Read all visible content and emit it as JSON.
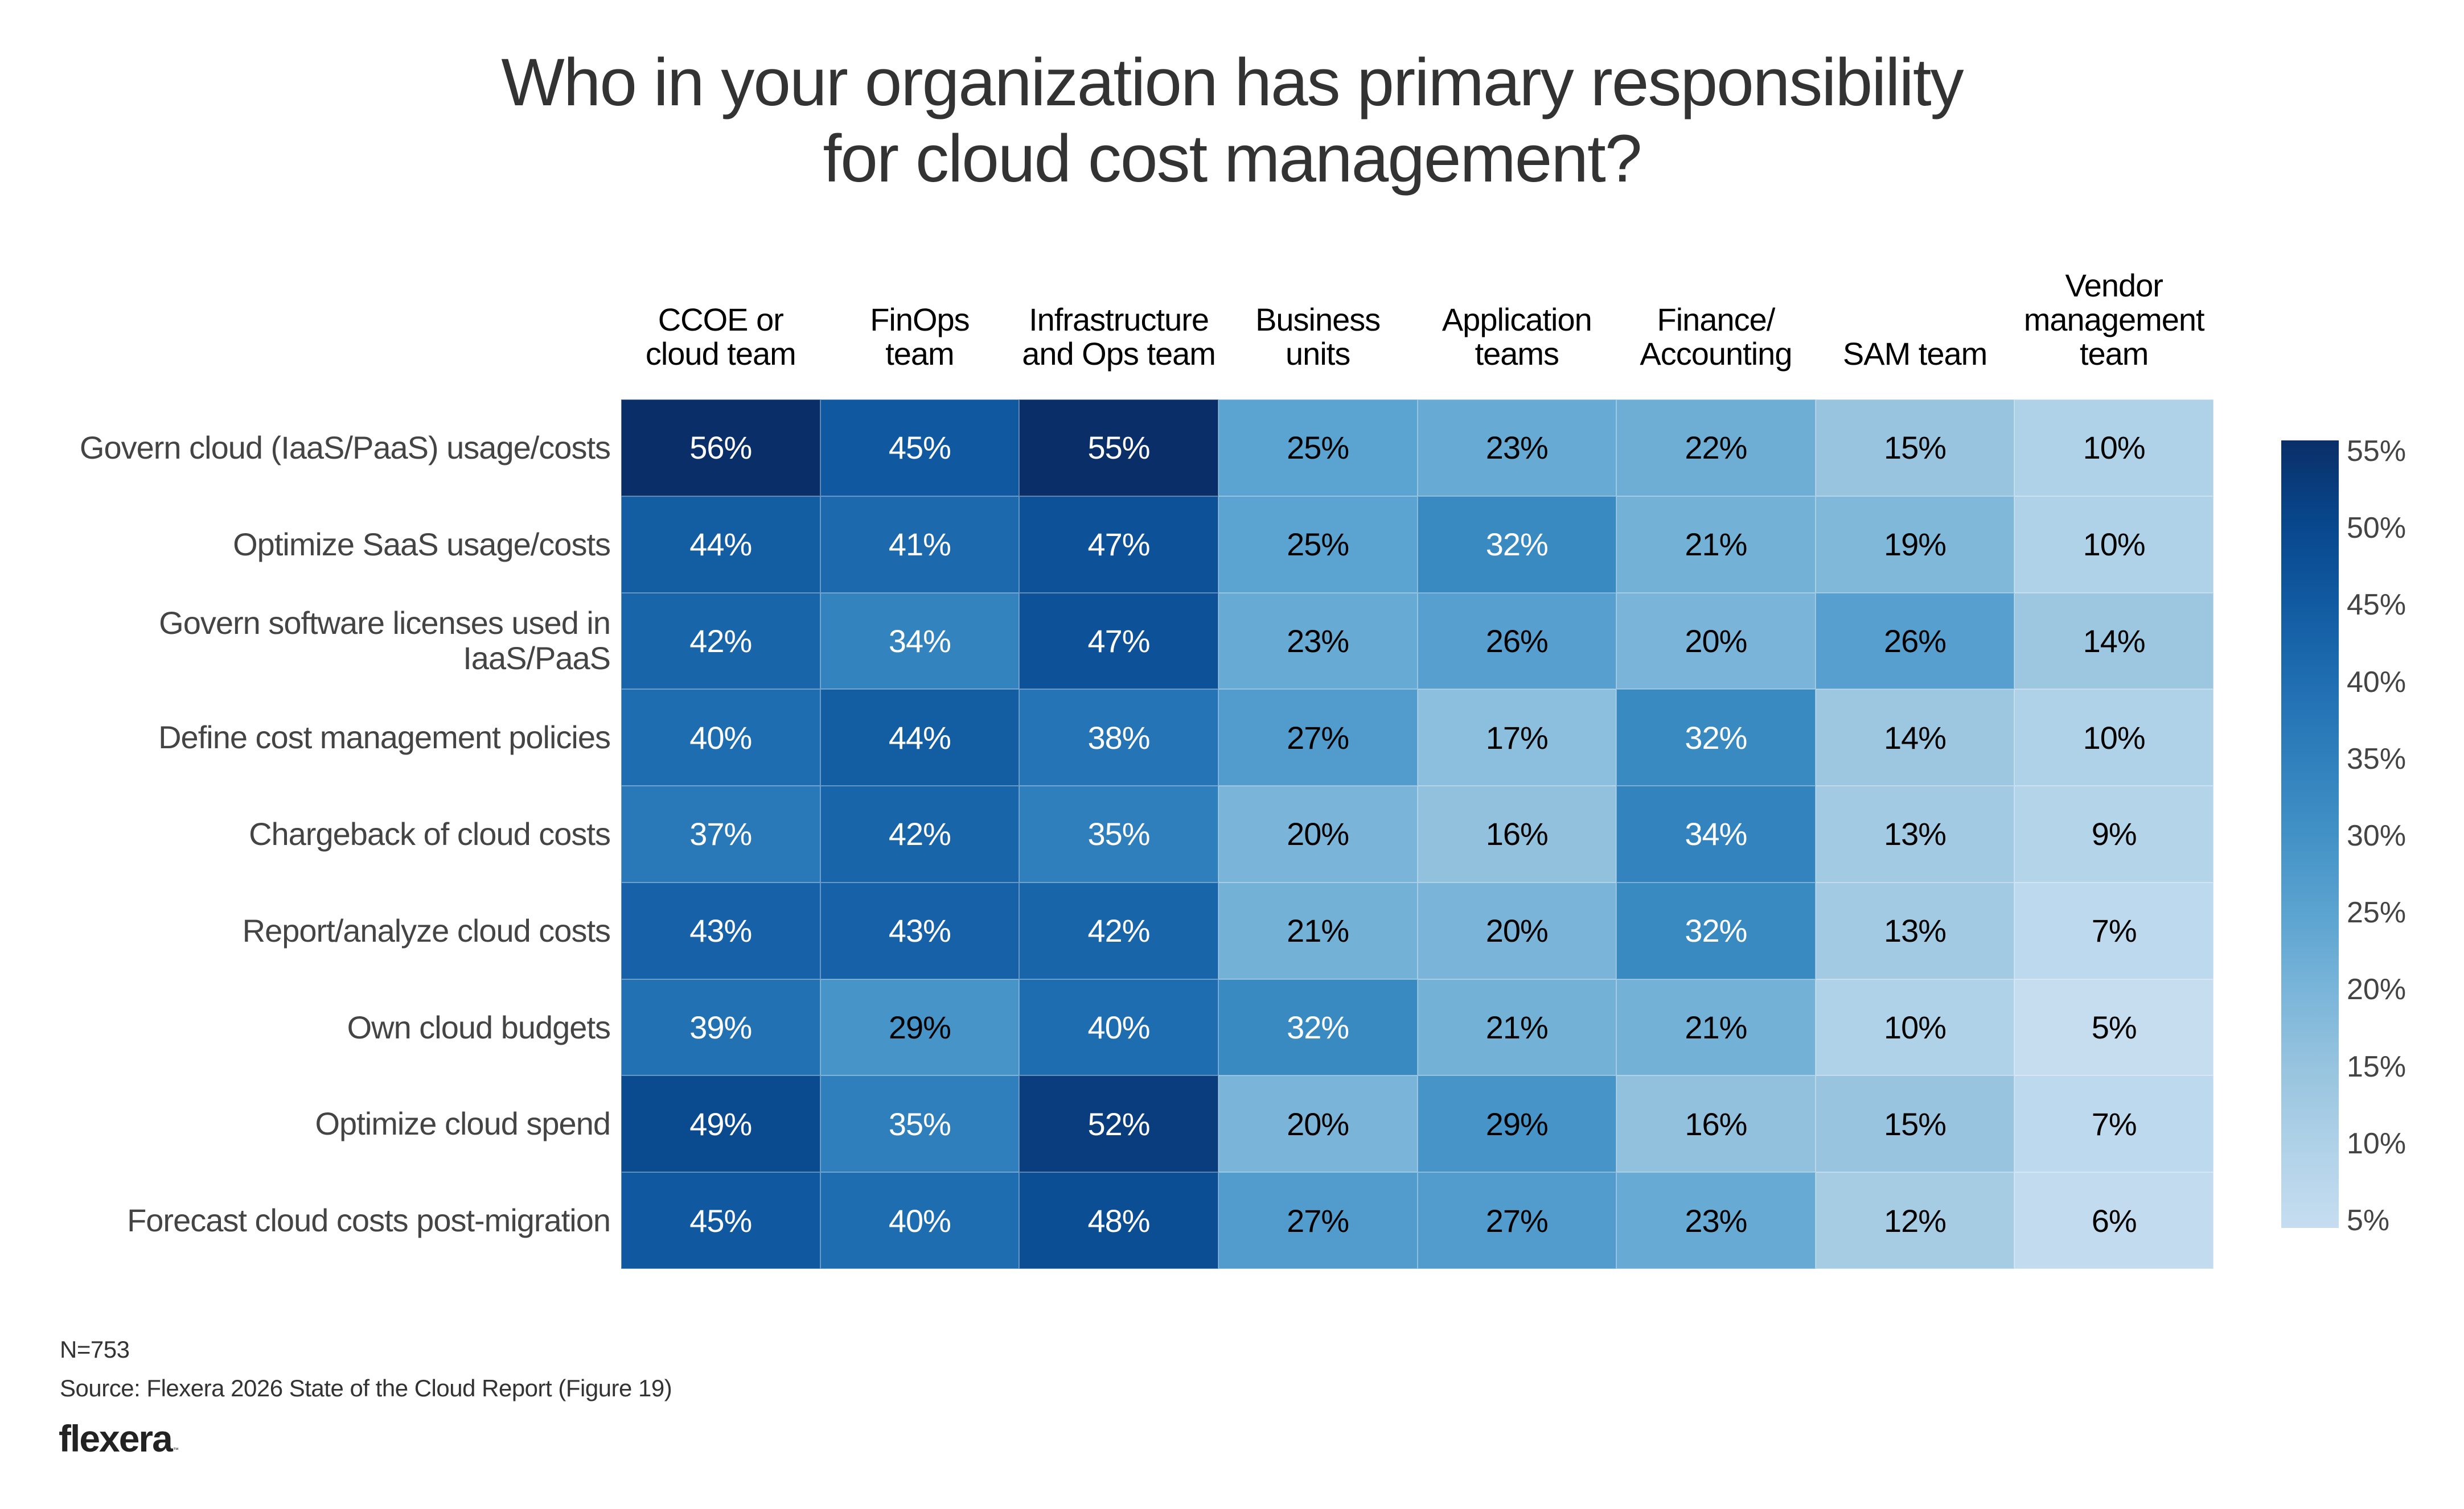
{
  "chart_data": {
    "type": "heatmap",
    "title": "Who in your organization has primary responsibility for cloud cost management?",
    "title_lines": [
      "Who in your organization has primary responsibility",
      "for cloud cost management?"
    ],
    "columns": [
      {
        "lines": [
          "CCOE or",
          "cloud team"
        ],
        "label": "CCOE or cloud team"
      },
      {
        "lines": [
          "FinOps",
          "team"
        ],
        "label": "FinOps team"
      },
      {
        "lines": [
          "Infrastructure",
          "and Ops team"
        ],
        "label": "Infrastructure and Ops team"
      },
      {
        "lines": [
          "Business",
          "units"
        ],
        "label": "Business units"
      },
      {
        "lines": [
          "Application",
          "teams"
        ],
        "label": "Application teams"
      },
      {
        "lines": [
          "Finance/",
          "Accounting"
        ],
        "label": "Finance/Accounting"
      },
      {
        "lines": [
          "SAM team"
        ],
        "label": "SAM team"
      },
      {
        "lines": [
          "Vendor",
          "management",
          "team"
        ],
        "label": "Vendor management team"
      }
    ],
    "rows": [
      {
        "lines": [
          "Govern cloud (IaaS/PaaS) usage/costs"
        ],
        "label": "Govern cloud (IaaS/PaaS) usage/costs"
      },
      {
        "lines": [
          "Optimize SaaS usage/costs"
        ],
        "label": "Optimize SaaS usage/costs"
      },
      {
        "lines": [
          "Govern software licenses used in",
          "IaaS/PaaS"
        ],
        "label": "Govern software licenses used in IaaS/PaaS"
      },
      {
        "lines": [
          "Define cost management policies"
        ],
        "label": "Define cost management policies"
      },
      {
        "lines": [
          "Chargeback of cloud costs"
        ],
        "label": "Chargeback of cloud costs"
      },
      {
        "lines": [
          "Report/analyze cloud costs"
        ],
        "label": "Report/analyze cloud costs"
      },
      {
        "lines": [
          "Own cloud budgets"
        ],
        "label": "Own cloud budgets"
      },
      {
        "lines": [
          "Optimize cloud spend"
        ],
        "label": "Optimize cloud spend"
      },
      {
        "lines": [
          "Forecast cloud costs post-migration"
        ],
        "label": "Forecast cloud costs post-migration"
      }
    ],
    "values": [
      [
        56,
        45,
        55,
        25,
        23,
        22,
        15,
        10
      ],
      [
        44,
        41,
        47,
        25,
        32,
        21,
        19,
        10
      ],
      [
        42,
        34,
        47,
        23,
        26,
        20,
        26,
        14
      ],
      [
        40,
        44,
        38,
        27,
        17,
        32,
        14,
        10
      ],
      [
        37,
        42,
        35,
        20,
        16,
        34,
        13,
        9
      ],
      [
        43,
        43,
        42,
        21,
        20,
        32,
        13,
        7
      ],
      [
        39,
        29,
        40,
        32,
        21,
        21,
        10,
        5
      ],
      [
        49,
        35,
        52,
        20,
        29,
        16,
        15,
        7
      ],
      [
        45,
        40,
        48,
        27,
        27,
        23,
        12,
        6
      ]
    ],
    "value_suffix": "%",
    "colorbar": {
      "range": [
        5,
        55
      ],
      "ticks": [
        "55%",
        "50%",
        "45%",
        "40%",
        "35%",
        "30%",
        "25%",
        "20%",
        "15%",
        "10%",
        "5%"
      ],
      "tick_values": [
        55,
        50,
        45,
        40,
        35,
        30,
        25,
        20,
        15,
        10,
        5
      ],
      "position": "right",
      "colors": {
        "5": "#c6ddf0",
        "10": "#b0d2e8",
        "15": "#98c4df",
        "20": "#7ab5d9",
        "25": "#5ba3d0",
        "30": "#4291c6",
        "35": "#2f7fbc",
        "40": "#1f6db1",
        "45": "#1059a0",
        "50": "#08468b",
        "55": "#0a2f68"
      }
    },
    "text_color_threshold": 30,
    "text_color_dark_cell": "#ffffff",
    "text_color_light_cell": "#000000"
  },
  "footer": {
    "sample_size": "N=753",
    "source": "Source: Flexera 2026 State of the Cloud Report (Figure 19)",
    "logo": "flexera",
    "logo_mark": "™"
  }
}
